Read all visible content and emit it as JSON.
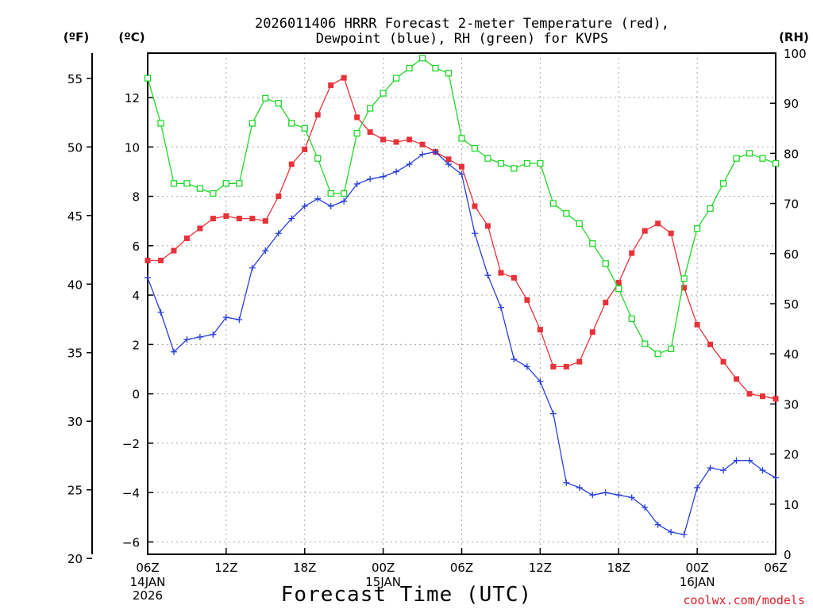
{
  "chart_data": {
    "type": "line",
    "title": [
      "2026011406 HRRR Forecast 2-meter Temperature (red),",
      "Dewpoint (blue), RH (green) for KVPS"
    ],
    "xlabel": "Forecast Time (UTC)",
    "units": {
      "left_outer": "(ºF)",
      "left_inner": "(ºC)",
      "right": "(RH)"
    },
    "x": [
      0,
      1,
      2,
      3,
      4,
      5,
      6,
      7,
      8,
      9,
      10,
      11,
      12,
      13,
      14,
      15,
      16,
      17,
      18,
      19,
      20,
      21,
      22,
      23,
      24,
      25,
      26,
      27,
      28,
      29,
      30,
      31,
      32,
      33,
      34,
      35,
      36,
      37,
      38,
      39,
      40,
      41,
      42,
      43,
      44,
      45,
      46,
      47,
      48
    ],
    "x_ticks": [
      {
        "h": 0,
        "label": "06Z",
        "date": [
          "14JAN",
          "2026"
        ]
      },
      {
        "h": 6,
        "label": "12Z",
        "date": []
      },
      {
        "h": 12,
        "label": "18Z",
        "date": []
      },
      {
        "h": 18,
        "label": "00Z",
        "date": [
          "15JAN"
        ]
      },
      {
        "h": 24,
        "label": "06Z",
        "date": []
      },
      {
        "h": 30,
        "label": "12Z",
        "date": []
      },
      {
        "h": 36,
        "label": "18Z",
        "date": []
      },
      {
        "h": 42,
        "label": "00Z",
        "date": [
          "16JAN"
        ]
      },
      {
        "h": 48,
        "label": "06Z",
        "date": []
      }
    ],
    "celsius_axis": {
      "ylim": [
        -6.5,
        13.8
      ],
      "ticks": [
        -6,
        -4,
        -2,
        0,
        2,
        4,
        6,
        8,
        10,
        12
      ]
    },
    "fahrenheit_axis": {
      "ticks": [
        20,
        25,
        30,
        35,
        40,
        45,
        50,
        55
      ]
    },
    "rh_axis": {
      "ylim": [
        0,
        100
      ],
      "ticks": [
        0,
        10,
        20,
        30,
        40,
        50,
        60,
        70,
        80,
        90,
        100
      ]
    },
    "grid": true,
    "series": [
      {
        "name": "Temperature",
        "axis": "celsius",
        "color": "#e8323a",
        "marker": "filled-square",
        "values": [
          5.4,
          5.4,
          5.8,
          6.3,
          6.7,
          7.1,
          7.2,
          7.1,
          7.1,
          7.0,
          8.0,
          9.3,
          9.9,
          11.3,
          12.5,
          12.8,
          11.2,
          10.6,
          10.3,
          10.2,
          10.3,
          10.1,
          9.8,
          9.5,
          9.2,
          7.6,
          6.8,
          4.9,
          4.7,
          3.8,
          2.6,
          1.1,
          1.1,
          1.3,
          2.5,
          3.7,
          4.5,
          5.7,
          6.6,
          6.9,
          6.5,
          4.3,
          2.8,
          2.0,
          1.3,
          0.6,
          0.0,
          -0.1,
          -0.2
        ]
      },
      {
        "name": "Dewpoint",
        "axis": "celsius",
        "color": "#2a3fd8",
        "marker": "plus",
        "values": [
          4.7,
          3.3,
          1.7,
          2.2,
          2.3,
          2.4,
          3.1,
          3.0,
          5.1,
          5.8,
          6.5,
          7.1,
          7.6,
          7.9,
          7.6,
          7.8,
          8.5,
          8.7,
          8.8,
          9.0,
          9.3,
          9.7,
          9.8,
          9.3,
          8.9,
          6.5,
          4.8,
          3.5,
          1.4,
          1.1,
          0.5,
          -0.8,
          -3.6,
          -3.8,
          -4.1,
          -4.0,
          -4.1,
          -4.2,
          -4.6,
          -5.3,
          -5.6,
          -5.7,
          -3.8,
          -3.0,
          -3.1,
          -2.7,
          -2.7,
          -3.1,
          -3.4
        ]
      },
      {
        "name": "RH",
        "axis": "rh",
        "color": "#22d62a",
        "marker": "open-square",
        "values": [
          95,
          86,
          74,
          74,
          73,
          72,
          74,
          74,
          86,
          91,
          90,
          86,
          85,
          79,
          72,
          72,
          84,
          89,
          92,
          95,
          97,
          99,
          97,
          96,
          83,
          81,
          79,
          78,
          77,
          78,
          78,
          70,
          68,
          66,
          62,
          58,
          53,
          47,
          42,
          40,
          41,
          55,
          65,
          69,
          74,
          79,
          80,
          79,
          78
        ]
      }
    ]
  },
  "credit": "coolwx.com/models"
}
